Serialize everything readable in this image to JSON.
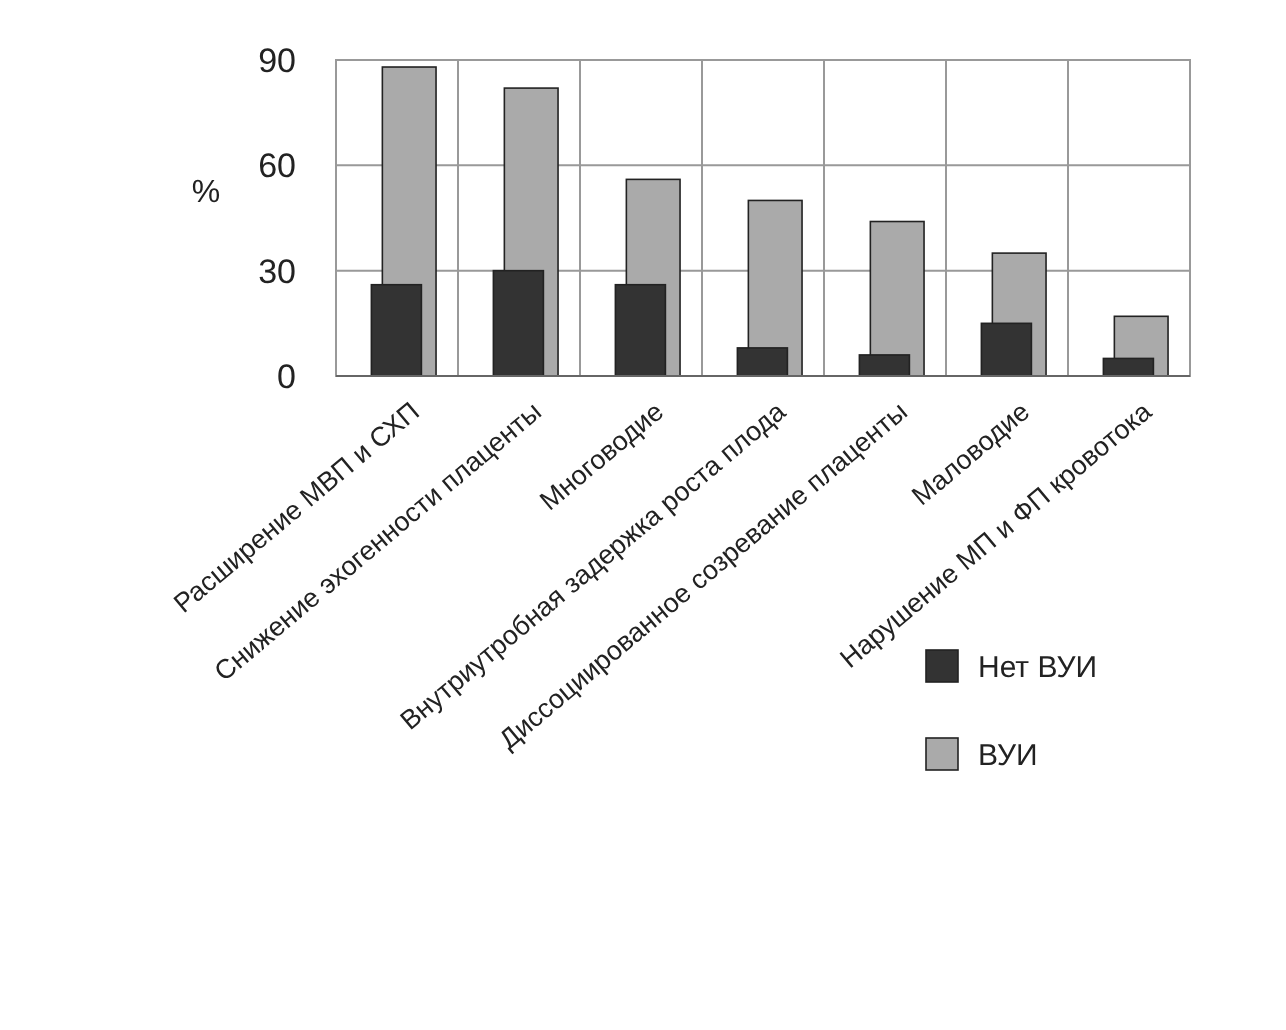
{
  "chart_data": {
    "type": "bar",
    "ylabel": "%",
    "categories": [
      "Расширение МВП и СХП",
      "Снижение эхогенности плаценты",
      "Многоводие",
      "Внутриутробная задержка роста плода",
      "Диссоциированное созревание плаценты",
      "Маловодие",
      "Нарушение МП и ФП кровотока"
    ],
    "series": [
      {
        "name": "Нет ВУИ",
        "color": "#333333",
        "values": [
          26,
          30,
          26,
          8,
          6,
          15,
          5
        ]
      },
      {
        "name": "ВУИ",
        "color": "#aaaaaa",
        "values": [
          88,
          82,
          56,
          50,
          44,
          35,
          17
        ]
      }
    ],
    "ylim": [
      0,
      90
    ],
    "yticks": [
      0,
      30,
      60,
      90
    ],
    "grid": true,
    "legend": "bottom right"
  }
}
